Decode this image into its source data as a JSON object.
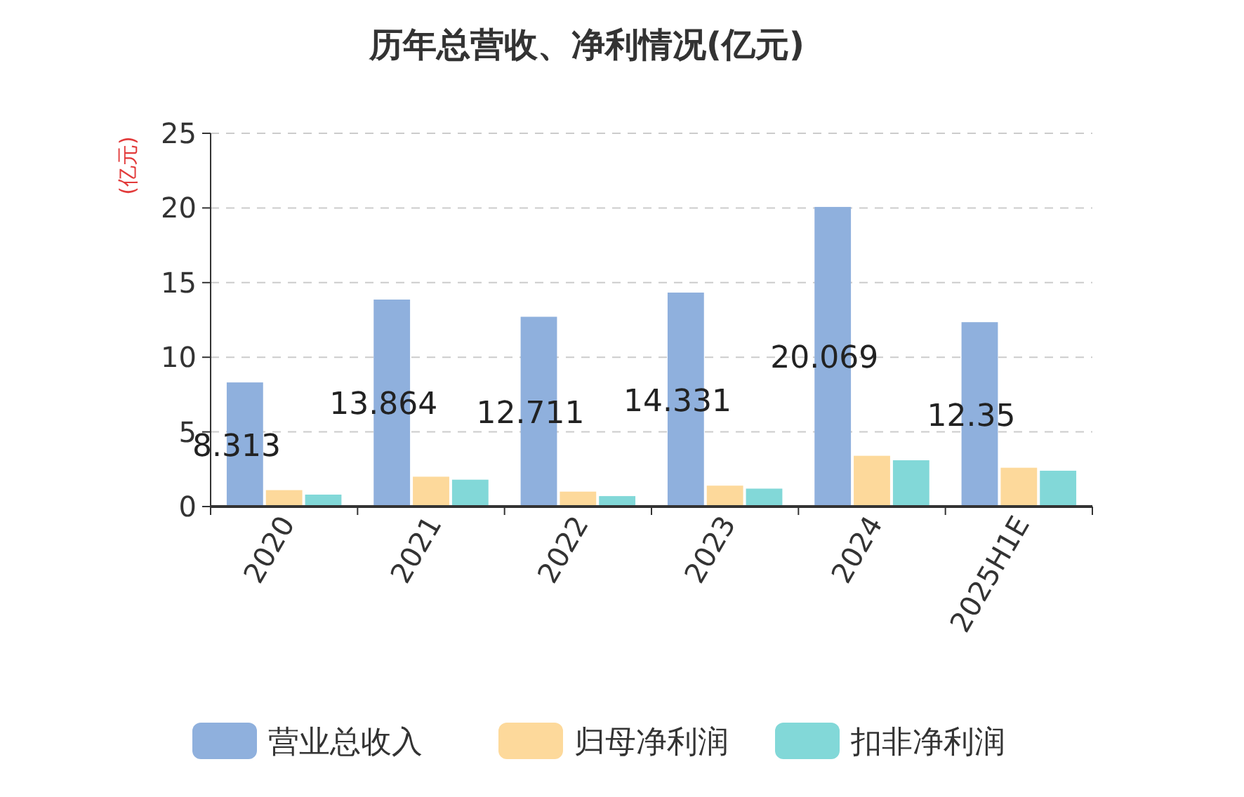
{
  "chart_data": {
    "type": "bar",
    "title": "历年总营收、净利情况(亿元)",
    "ylabel": "(亿元)",
    "categories": [
      "2020",
      "2021",
      "2022",
      "2023",
      "2024",
      "2025H1E"
    ],
    "series": [
      {
        "name": "营业总收入",
        "color": "#8fb0dd",
        "values": [
          8.313,
          13.864,
          12.711,
          14.331,
          20.069,
          12.35
        ],
        "value_labels": [
          "8.313",
          "13.864",
          "12.711",
          "14.331",
          "20.069",
          "12.35"
        ]
      },
      {
        "name": "归母净利润",
        "color": "#fdd99b",
        "values": [
          1.1,
          2.0,
          1.0,
          1.4,
          3.4,
          2.6
        ]
      },
      {
        "name": "扣非净利润",
        "color": "#82d8d8",
        "values": [
          0.8,
          1.8,
          0.7,
          1.2,
          3.1,
          2.4
        ]
      }
    ],
    "ylim": [
      0,
      25
    ],
    "yticks": [
      0,
      5,
      10,
      15,
      20,
      25
    ],
    "grid": "y",
    "legend": "bottom"
  }
}
